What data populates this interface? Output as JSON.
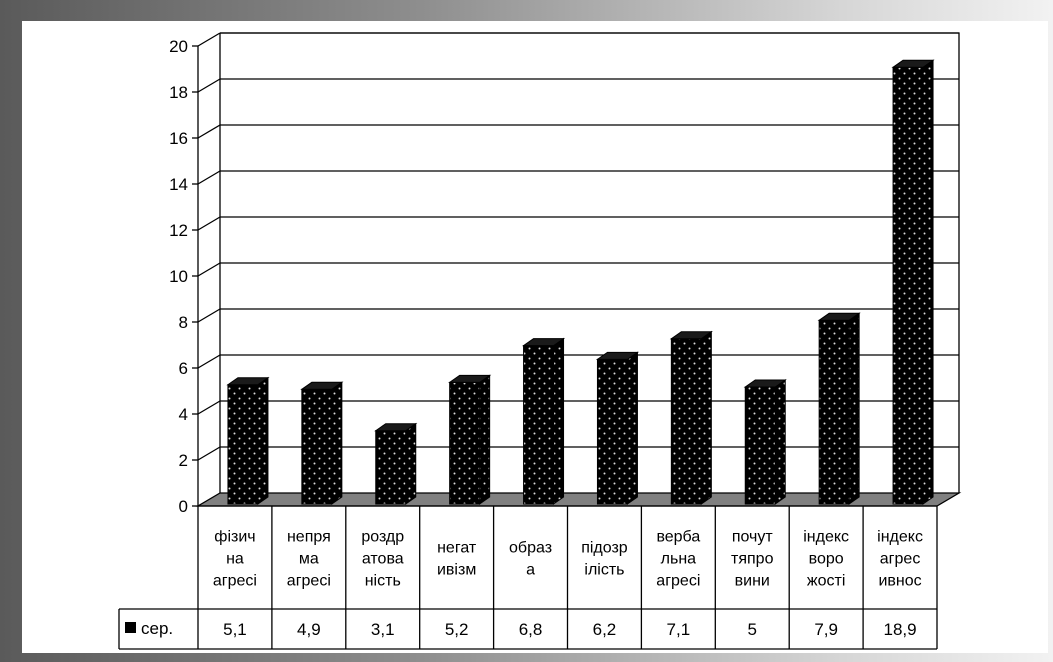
{
  "colors": {
    "bar": "#000000",
    "bar_dots": "#ffffff",
    "floor": "#808080",
    "gridline": "#000000",
    "frame": "#8e8e8e",
    "background": "#ffffff"
  },
  "chart_data": {
    "type": "bar",
    "categories": [
      [
        "фізич",
        "на",
        "агресі"
      ],
      [
        "непря",
        "ма",
        "агресі"
      ],
      [
        "роздр",
        "атова",
        "ність"
      ],
      [
        "негат",
        "ивізм"
      ],
      [
        "образ",
        "а"
      ],
      [
        "підозр",
        "ілість"
      ],
      [
        "верба",
        "льна",
        "агресі"
      ],
      [
        "почут",
        "тяпро",
        "вини"
      ],
      [
        "індекс",
        "воро",
        "жості"
      ],
      [
        "індекс",
        "агрес",
        "ивнос"
      ]
    ],
    "series": [
      {
        "name": "сер.",
        "values": [
          5.1,
          4.9,
          3.1,
          5.2,
          6.8,
          6.2,
          7.1,
          5,
          7.9,
          18.9
        ],
        "labels": [
          "5,1",
          "4,9",
          "3,1",
          "5,2",
          "6,8",
          "6,2",
          "7,1",
          "5",
          "7,9",
          "18,9"
        ]
      }
    ],
    "ylim": [
      0,
      20
    ],
    "yticks": [
      0,
      2,
      4,
      6,
      8,
      10,
      12,
      14,
      16,
      18,
      20
    ],
    "grid": true,
    "legend": "data-table",
    "style": "3d-column"
  }
}
